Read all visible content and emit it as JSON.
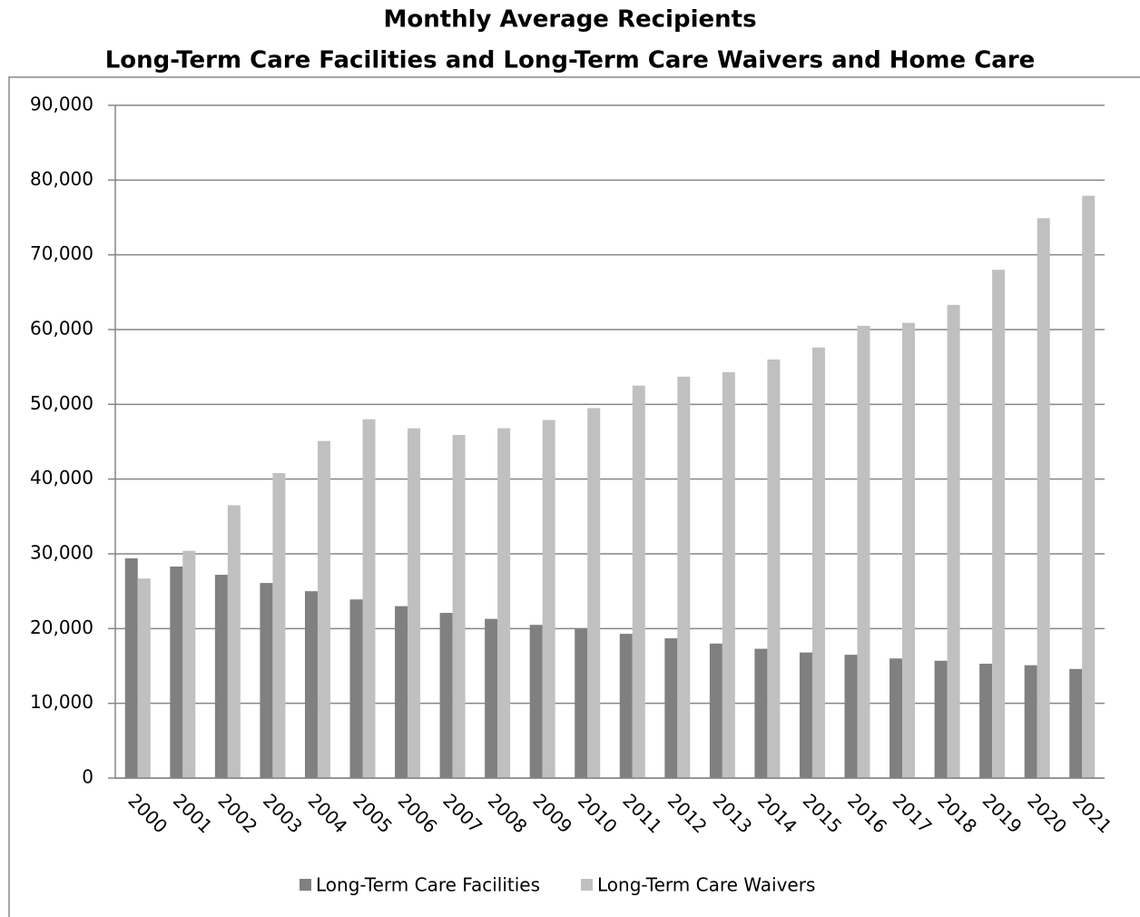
{
  "chart_data": {
    "type": "bar",
    "title": "Monthly Average Recipients",
    "subtitle": "Long-Term Care Facilities and Long-Term Care Waivers and Home Care",
    "categories": [
      "2000",
      "2001",
      "2002",
      "2003",
      "2004",
      "2005",
      "2006",
      "2007",
      "2008",
      "2009",
      "2010",
      "2011",
      "2012",
      "2013",
      "2014",
      "2015",
      "2016",
      "2017",
      "2018",
      "2019",
      "2020",
      "2021"
    ],
    "series": [
      {
        "name": "Long-Term Care Facilities",
        "color": "#808080",
        "values": [
          29400,
          28300,
          27200,
          26100,
          25000,
          23900,
          23000,
          22100,
          21300,
          20500,
          20000,
          19300,
          18700,
          18000,
          17300,
          16800,
          16500,
          16000,
          15700,
          15300,
          15100,
          14600
        ]
      },
      {
        "name": "Long-Term Care Waivers",
        "color": "#c0c0c0",
        "values": [
          26700,
          30400,
          36500,
          40800,
          45100,
          48000,
          46800,
          45900,
          46800,
          47900,
          49500,
          52500,
          53700,
          54300,
          56000,
          57600,
          60500,
          60900,
          63300,
          68000,
          74900,
          77900
        ]
      }
    ],
    "ylim": [
      0,
      90000
    ],
    "yticks": [
      0,
      {
        "value": 10000,
        "label": "10,000"
      },
      {
        "value": 20000,
        "label": "20,000"
      },
      {
        "value": 30000,
        "label": "30,000"
      },
      {
        "value": 40000,
        "label": "40,000"
      },
      {
        "value": 50000,
        "label": "50,000"
      },
      {
        "value": 60000,
        "label": "60,000"
      },
      {
        "value": 70000,
        "label": "70,000"
      },
      {
        "value": 80000,
        "label": "80,000"
      },
      {
        "value": 90000,
        "label": "90,000"
      }
    ],
    "grid": true,
    "legend": "bottom"
  }
}
